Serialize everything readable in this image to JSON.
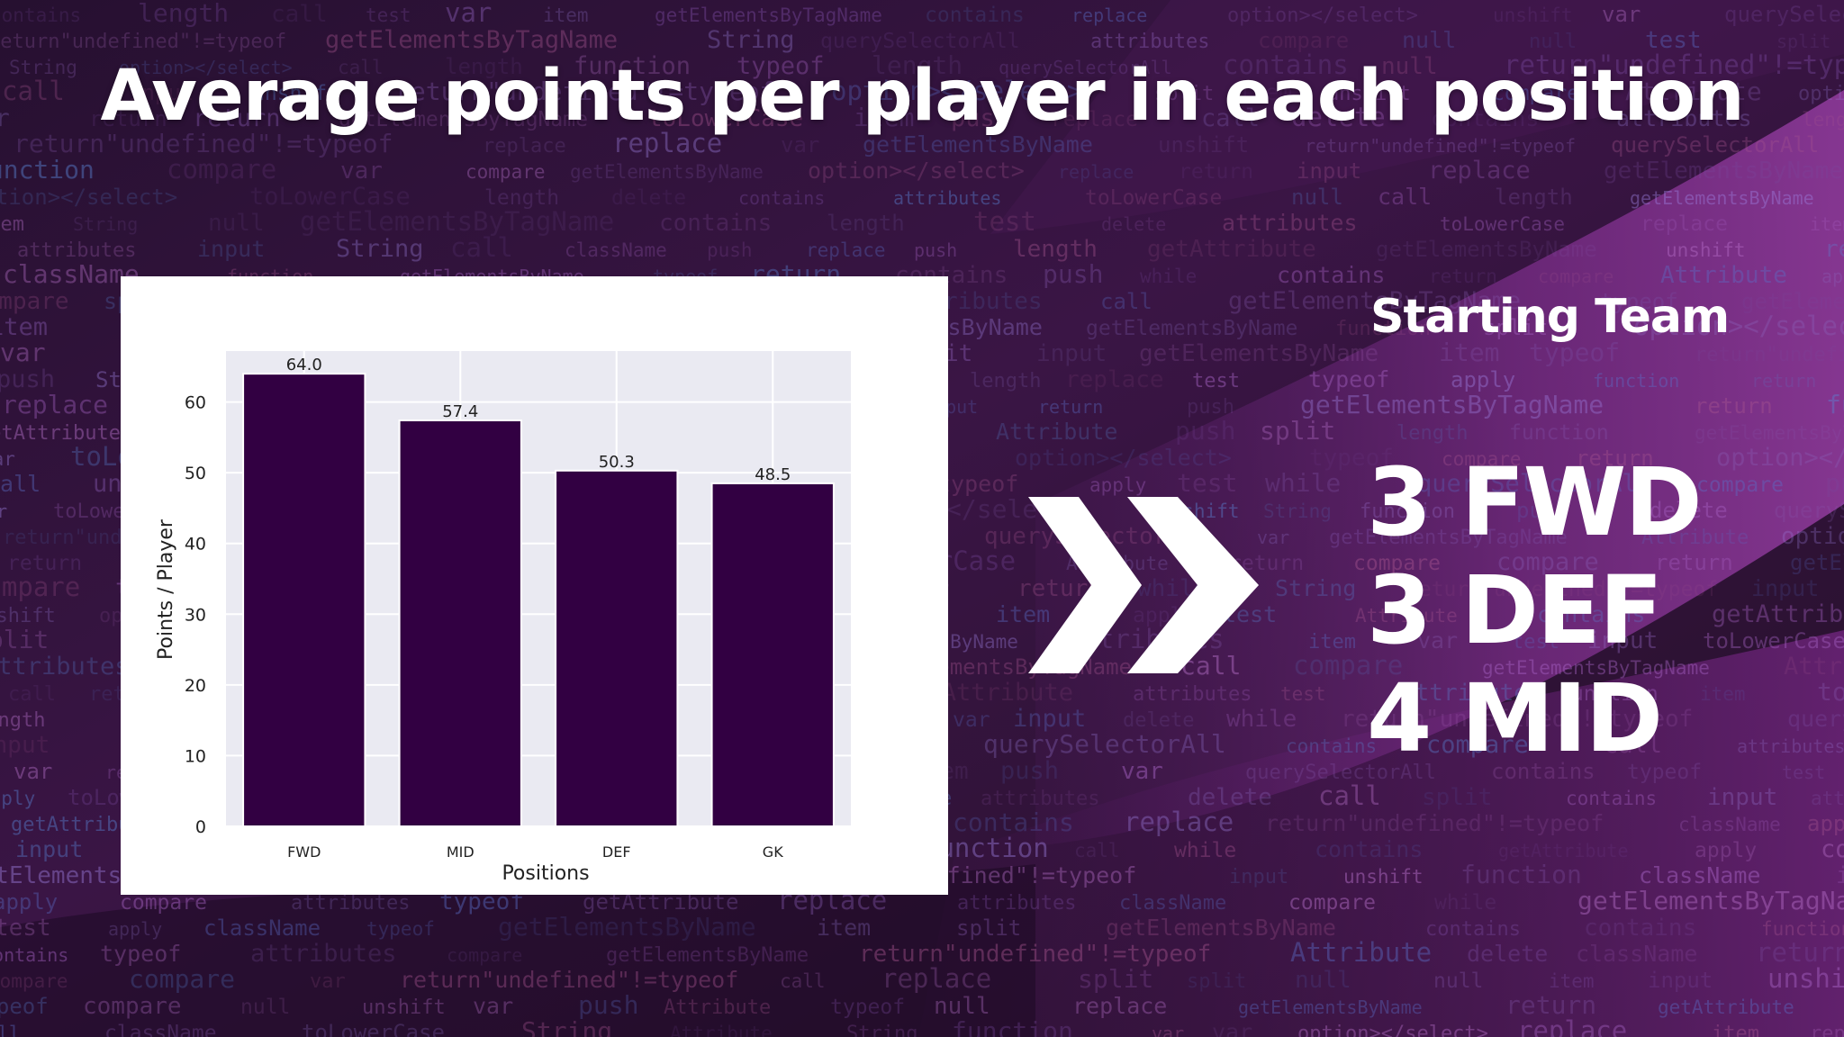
{
  "slide": {
    "title": "Average points per player in each position"
  },
  "background": {
    "code_snippets": [
      "function",
      "var",
      "length",
      "return",
      "push",
      "split",
      "toLowerCase",
      "getElementsByName",
      "getElementsByTagName",
      "querySelectorAll",
      "replace",
      "className",
      "Attribute",
      "return\"undefined\"!=typeof",
      "option></select>",
      "getAttribute",
      "contains",
      "compare",
      "while",
      "unshift",
      "test",
      "delete",
      "attributes",
      "call",
      "input",
      "String",
      "null",
      "typeof",
      "item",
      "apply"
    ]
  },
  "team": {
    "heading": "Starting Team",
    "lines": [
      "3 FWD",
      "3 DEF",
      "4 MID"
    ]
  },
  "colors": {
    "bar": "#320042",
    "plot_bg": "#eaeaf2",
    "text": "#ffffff",
    "bg_dark": "#2a0f32",
    "bg_purple": "#6a2a7a"
  },
  "icons": {
    "arrows": "double-chevron-right-icon"
  },
  "chart_data": {
    "type": "bar",
    "categories": [
      "FWD",
      "MID",
      "DEF",
      "GK"
    ],
    "values": [
      64.0,
      57.4,
      50.3,
      48.5
    ],
    "value_labels": [
      "64.0",
      "57.4",
      "50.3",
      "48.5"
    ],
    "xlabel": "Positions",
    "ylabel": "Points / Player",
    "ylim": [
      0,
      67.2
    ],
    "yticks": [
      0,
      10,
      20,
      30,
      40,
      50,
      60
    ],
    "grid": true
  }
}
